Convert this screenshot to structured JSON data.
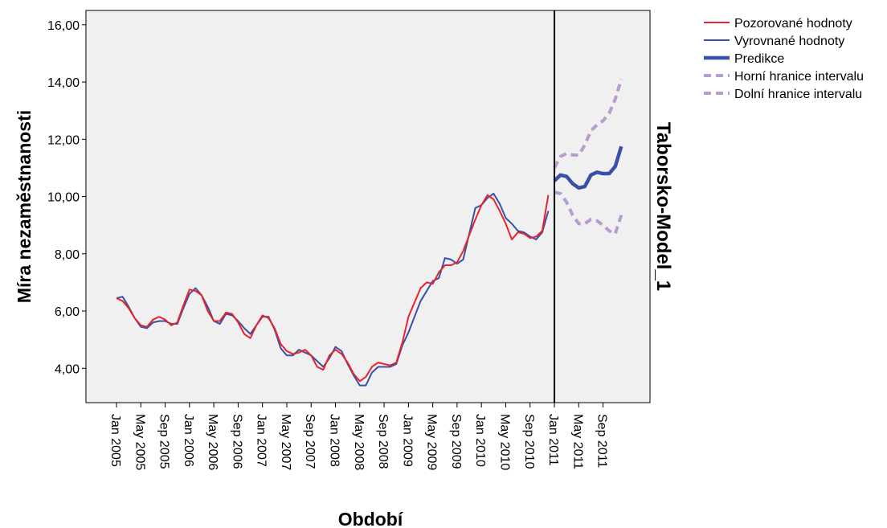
{
  "chart_data": {
    "type": "line",
    "xlabel": "Období",
    "ylabel": "Míra nezaměstnanosti",
    "panel_label": "Taborsko-Model_1",
    "ylim": [
      2.8,
      16.5
    ],
    "y_ticks": [
      "4,00",
      "6,00",
      "8,00",
      "10,00",
      "12,00",
      "14,00",
      "16,00"
    ],
    "x_ticks": [
      "Jan 2005",
      "May 2005",
      "Sep 2005",
      "Jan 2006",
      "May 2006",
      "Sep 2006",
      "Jan 2007",
      "May 2007",
      "Sep 2007",
      "Jan 2008",
      "May 2008",
      "Sep 2008",
      "Jan 2009",
      "May 2009",
      "Sep 2009",
      "Jan 2010",
      "May 2010",
      "Sep 2010",
      "Jan 2011",
      "May 2011",
      "Sep 2011"
    ],
    "x_range": [
      "Jan 2005",
      "Dec 2011"
    ],
    "forecast_start": "Jan 2011",
    "grid": false,
    "legend_position": "top-right",
    "colors": {
      "plot_bg": "#f0f0f0",
      "observed": "#e8242a",
      "fitted": "#3a50a8",
      "forecast": "#3a50a8",
      "interval": "#b79ccf"
    },
    "series": [
      {
        "name": "Pozorované hodnoty",
        "start": "Jan 2005",
        "values": [
          6.45,
          6.35,
          6.1,
          5.75,
          5.5,
          5.45,
          5.7,
          5.8,
          5.7,
          5.5,
          5.6,
          6.2,
          6.75,
          6.7,
          6.55,
          6.0,
          5.65,
          5.65,
          5.95,
          5.9,
          5.6,
          5.2,
          5.05,
          5.5,
          5.85,
          5.75,
          5.4,
          4.85,
          4.6,
          4.5,
          4.55,
          4.65,
          4.45,
          4.05,
          3.95,
          4.45,
          4.65,
          4.5,
          4.2,
          3.8,
          3.55,
          3.7,
          4.05,
          4.2,
          4.15,
          4.1,
          4.2,
          4.9,
          5.8,
          6.3,
          6.8,
          7.0,
          6.95,
          7.35,
          7.6,
          7.6,
          7.7,
          8.1,
          8.65,
          9.2,
          9.7,
          10.05,
          9.9,
          9.5,
          9.05,
          8.5,
          8.75,
          8.7,
          8.55,
          8.6,
          8.8,
          10.05
        ]
      },
      {
        "name": "Vyrovnané hodnoty",
        "start": "Jan 2005",
        "values": [
          6.45,
          6.5,
          6.15,
          5.75,
          5.45,
          5.4,
          5.6,
          5.65,
          5.65,
          5.55,
          5.55,
          6.1,
          6.6,
          6.8,
          6.55,
          6.15,
          5.65,
          5.55,
          5.9,
          5.85,
          5.65,
          5.4,
          5.2,
          5.5,
          5.8,
          5.8,
          5.35,
          4.7,
          4.45,
          4.45,
          4.65,
          4.55,
          4.45,
          4.25,
          4.05,
          4.35,
          4.75,
          4.6,
          4.15,
          3.75,
          3.4,
          3.4,
          3.85,
          4.05,
          4.05,
          4.05,
          4.15,
          4.8,
          5.25,
          5.8,
          6.35,
          6.7,
          7.05,
          7.15,
          7.85,
          7.8,
          7.65,
          7.8,
          8.7,
          9.6,
          9.7,
          9.95,
          10.1,
          9.75,
          9.25,
          9.05,
          8.8,
          8.75,
          8.6,
          8.5,
          8.75,
          9.5
        ]
      },
      {
        "name": "Predikce",
        "start": "Jan 2011",
        "values": [
          10.55,
          10.75,
          10.7,
          10.45,
          10.3,
          10.35,
          10.75,
          10.85,
          10.8,
          10.8,
          11.05,
          11.75
        ]
      },
      {
        "name": "Horní hranice intervalu",
        "start": "Jan 2011",
        "values": [
          11.0,
          11.4,
          11.5,
          11.45,
          11.45,
          11.8,
          12.3,
          12.5,
          12.65,
          12.9,
          13.4,
          14.1
        ]
      },
      {
        "name": "Dolní hranice intervalu",
        "start": "Jan 2011",
        "values": [
          10.15,
          10.1,
          9.8,
          9.35,
          9.05,
          9.05,
          9.2,
          9.15,
          9.0,
          8.8,
          8.7,
          9.35
        ]
      }
    ]
  }
}
